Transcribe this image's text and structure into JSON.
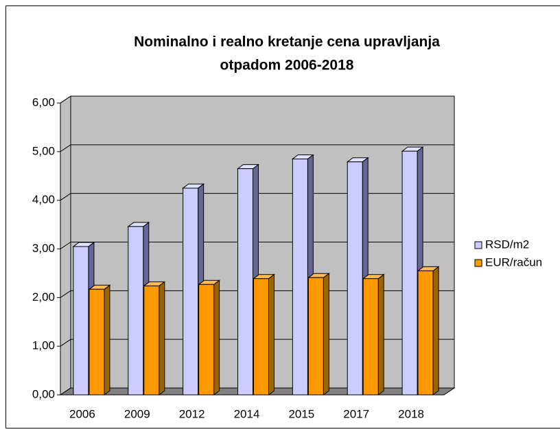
{
  "chart_data": {
    "type": "bar3d",
    "title": [
      "Nominalno i realno kretanje cena upravljanja",
      "otpadom 2006-2018"
    ],
    "categories": [
      "2006",
      "2009",
      "2012",
      "2014",
      "2015",
      "2017",
      "2018"
    ],
    "series": [
      {
        "name": "RSD/m2",
        "color": "#ccccff",
        "values": [
          3.05,
          3.46,
          4.25,
          4.65,
          4.85,
          4.79,
          5.01
        ]
      },
      {
        "name": "EUR/račun",
        "color": "#ff9900",
        "values": [
          2.17,
          2.24,
          2.27,
          2.39,
          2.41,
          2.39,
          2.55
        ]
      }
    ],
    "ylim": [
      0,
      6
    ],
    "yticks": [
      {
        "value": 0,
        "label": "0,00"
      },
      {
        "value": 1,
        "label": "1,00"
      },
      {
        "value": 2,
        "label": "2,00"
      },
      {
        "value": 3,
        "label": "3,00"
      },
      {
        "value": 4,
        "label": "4,00"
      },
      {
        "value": 5,
        "label": "5,00"
      },
      {
        "value": 6,
        "label": "6,00"
      }
    ],
    "grid": true,
    "legend": "right"
  }
}
